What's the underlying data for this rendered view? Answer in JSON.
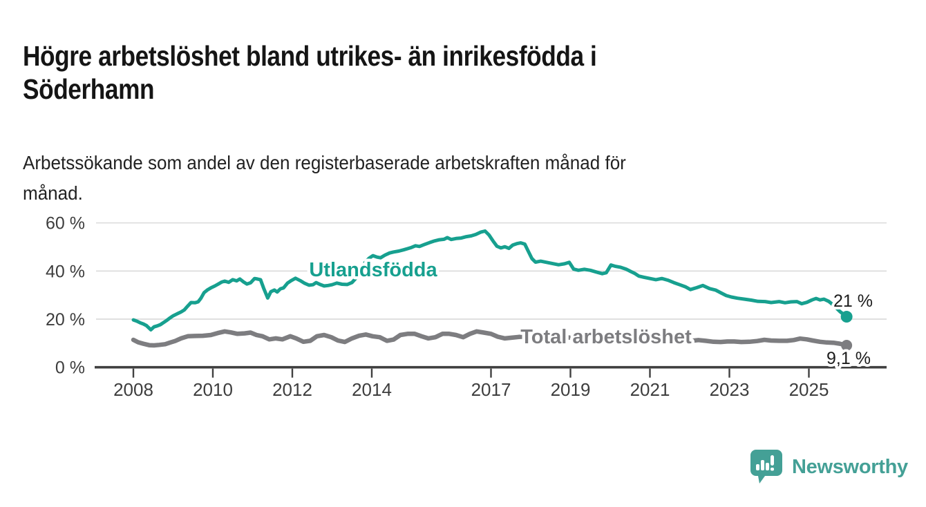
{
  "header": {
    "title": "Högre arbetslöshet bland utrikes- än inrikesfödda i Söderhamn",
    "title_lines": [
      "Högre arbetslöshet bland utrikes- än inrikesfödda i",
      "Söderhamn"
    ],
    "subtitle": "Arbetssökande som andel av den registerbaserade arbetskraften månad för månad.",
    "subtitle_lines": [
      "Arbetssökande som andel av den registerbaserade arbetskraften månad för",
      "månad."
    ]
  },
  "footer": {
    "brand": "Newsworthy",
    "brand_color": "#44a096",
    "logo_icon": "bar-chart-speech-bubble-icon"
  },
  "chart_data": {
    "type": "line",
    "title": "Högre arbetslöshet bland utrikes- än inrikesfödda i Söderhamn",
    "subtitle": "Arbetssökande som andel av den registerbaserade arbetskraften månad för månad.",
    "xlabel": "",
    "ylabel": "",
    "x_axis": {
      "min": 2008,
      "max": 2026.1,
      "ticks": [
        {
          "v": 2008,
          "label": "2008"
        },
        {
          "v": 2010,
          "label": "2010"
        },
        {
          "v": 2012,
          "label": "2012"
        },
        {
          "v": 2014,
          "label": "2014"
        },
        {
          "v": 2017,
          "label": "2017"
        },
        {
          "v": 2019,
          "label": "2019"
        },
        {
          "v": 2021,
          "label": "2021"
        },
        {
          "v": 2023,
          "label": "2023"
        },
        {
          "v": 2025,
          "label": "2025"
        }
      ]
    },
    "y_axis": {
      "min": 0,
      "max": 62,
      "unit": "%",
      "grid": true,
      "ticks": [
        {
          "v": 0,
          "label": "0 %"
        },
        {
          "v": 20,
          "label": "20 %"
        },
        {
          "v": 40,
          "label": "40 %"
        },
        {
          "v": 60,
          "label": "60 %"
        }
      ]
    },
    "colors": {
      "grid": "#dcdcdc",
      "axis": "#404040",
      "tick_text": "#3d3d3d",
      "annotation_text": "#1c1c1c"
    },
    "legend_position": "inline-labels",
    "series": [
      {
        "name": "Utlandsfödda",
        "color": "#17a08f",
        "end_label": "21 %",
        "end_value": 21,
        "points": [
          [
            2008.0,
            19.7
          ],
          [
            2008.08,
            19.2
          ],
          [
            2008.17,
            18.5
          ],
          [
            2008.25,
            18.0
          ],
          [
            2008.33,
            17.3
          ],
          [
            2008.44,
            15.6
          ],
          [
            2008.52,
            16.8
          ],
          [
            2008.6,
            17.2
          ],
          [
            2008.68,
            17.7
          ],
          [
            2008.76,
            18.6
          ],
          [
            2008.85,
            19.6
          ],
          [
            2008.93,
            20.6
          ],
          [
            2009.0,
            21.4
          ],
          [
            2009.1,
            22.2
          ],
          [
            2009.2,
            23.0
          ],
          [
            2009.28,
            23.8
          ],
          [
            2009.37,
            25.5
          ],
          [
            2009.45,
            26.9
          ],
          [
            2009.55,
            26.8
          ],
          [
            2009.63,
            27.2
          ],
          [
            2009.7,
            28.7
          ],
          [
            2009.78,
            31.0
          ],
          [
            2009.86,
            32.1
          ],
          [
            2009.95,
            33.0
          ],
          [
            2010.05,
            33.8
          ],
          [
            2010.15,
            34.7
          ],
          [
            2010.22,
            35.4
          ],
          [
            2010.3,
            35.8
          ],
          [
            2010.4,
            35.3
          ],
          [
            2010.5,
            36.4
          ],
          [
            2010.6,
            35.9
          ],
          [
            2010.68,
            36.7
          ],
          [
            2010.78,
            35.4
          ],
          [
            2010.86,
            34.6
          ],
          [
            2010.95,
            35.1
          ],
          [
            2011.05,
            36.9
          ],
          [
            2011.12,
            36.7
          ],
          [
            2011.2,
            36.4
          ],
          [
            2011.28,
            32.8
          ],
          [
            2011.38,
            28.8
          ],
          [
            2011.46,
            31.4
          ],
          [
            2011.55,
            32.1
          ],
          [
            2011.62,
            31.3
          ],
          [
            2011.7,
            32.6
          ],
          [
            2011.78,
            33.0
          ],
          [
            2011.88,
            35.0
          ],
          [
            2011.97,
            36.0
          ],
          [
            2012.08,
            37.0
          ],
          [
            2012.2,
            36.0
          ],
          [
            2012.3,
            35.0
          ],
          [
            2012.42,
            34.1
          ],
          [
            2012.52,
            34.3
          ],
          [
            2012.6,
            35.2
          ],
          [
            2012.7,
            34.4
          ],
          [
            2012.8,
            33.8
          ],
          [
            2012.9,
            34.0
          ],
          [
            2013.0,
            34.3
          ],
          [
            2013.12,
            35.0
          ],
          [
            2013.25,
            34.5
          ],
          [
            2013.38,
            34.4
          ],
          [
            2013.5,
            35.2
          ],
          [
            2013.6,
            37.0
          ],
          [
            2013.72,
            40.5
          ],
          [
            2013.83,
            43.5
          ],
          [
            2013.93,
            45.3
          ],
          [
            2014.03,
            46.4
          ],
          [
            2014.13,
            45.8
          ],
          [
            2014.22,
            45.5
          ],
          [
            2014.33,
            46.6
          ],
          [
            2014.45,
            47.5
          ],
          [
            2014.55,
            47.9
          ],
          [
            2014.68,
            48.3
          ],
          [
            2014.8,
            48.8
          ],
          [
            2014.9,
            49.3
          ],
          [
            2015.0,
            49.8
          ],
          [
            2015.1,
            50.5
          ],
          [
            2015.2,
            50.2
          ],
          [
            2015.32,
            51.0
          ],
          [
            2015.45,
            51.8
          ],
          [
            2015.58,
            52.5
          ],
          [
            2015.7,
            53.0
          ],
          [
            2015.82,
            53.2
          ],
          [
            2015.9,
            53.9
          ],
          [
            2016.0,
            53.1
          ],
          [
            2016.12,
            53.5
          ],
          [
            2016.25,
            53.7
          ],
          [
            2016.38,
            54.3
          ],
          [
            2016.5,
            54.6
          ],
          [
            2016.62,
            55.2
          ],
          [
            2016.75,
            56.2
          ],
          [
            2016.85,
            56.6
          ],
          [
            2016.95,
            55.0
          ],
          [
            2017.05,
            52.5
          ],
          [
            2017.15,
            50.3
          ],
          [
            2017.25,
            49.6
          ],
          [
            2017.35,
            50.1
          ],
          [
            2017.45,
            49.4
          ],
          [
            2017.55,
            50.8
          ],
          [
            2017.65,
            51.4
          ],
          [
            2017.75,
            51.7
          ],
          [
            2017.85,
            51.2
          ],
          [
            2017.93,
            48.5
          ],
          [
            2018.03,
            45.2
          ],
          [
            2018.12,
            43.7
          ],
          [
            2018.25,
            44.1
          ],
          [
            2018.4,
            43.6
          ],
          [
            2018.55,
            43.1
          ],
          [
            2018.7,
            42.6
          ],
          [
            2018.85,
            43.0
          ],
          [
            2018.97,
            43.6
          ],
          [
            2019.08,
            40.8
          ],
          [
            2019.2,
            40.3
          ],
          [
            2019.35,
            40.7
          ],
          [
            2019.5,
            40.3
          ],
          [
            2019.65,
            39.6
          ],
          [
            2019.8,
            38.9
          ],
          [
            2019.9,
            39.3
          ],
          [
            2020.02,
            42.5
          ],
          [
            2020.12,
            42.0
          ],
          [
            2020.25,
            41.6
          ],
          [
            2020.4,
            40.8
          ],
          [
            2020.52,
            39.8
          ],
          [
            2020.62,
            39.0
          ],
          [
            2020.72,
            37.9
          ],
          [
            2020.85,
            37.4
          ],
          [
            2021.0,
            36.9
          ],
          [
            2021.15,
            36.4
          ],
          [
            2021.3,
            36.9
          ],
          [
            2021.45,
            36.2
          ],
          [
            2021.6,
            35.2
          ],
          [
            2021.75,
            34.3
          ],
          [
            2021.9,
            33.4
          ],
          [
            2022.02,
            32.3
          ],
          [
            2022.18,
            33.1
          ],
          [
            2022.33,
            34.0
          ],
          [
            2022.5,
            32.7
          ],
          [
            2022.65,
            32.1
          ],
          [
            2022.8,
            30.8
          ],
          [
            2022.92,
            29.8
          ],
          [
            2023.05,
            29.2
          ],
          [
            2023.2,
            28.7
          ],
          [
            2023.38,
            28.3
          ],
          [
            2023.55,
            27.9
          ],
          [
            2023.72,
            27.4
          ],
          [
            2023.9,
            27.3
          ],
          [
            2024.05,
            26.9
          ],
          [
            2024.25,
            27.3
          ],
          [
            2024.4,
            26.8
          ],
          [
            2024.55,
            27.2
          ],
          [
            2024.7,
            27.3
          ],
          [
            2024.82,
            26.4
          ],
          [
            2024.95,
            27.0
          ],
          [
            2025.08,
            28.0
          ],
          [
            2025.18,
            28.6
          ],
          [
            2025.28,
            28.0
          ],
          [
            2025.38,
            28.3
          ],
          [
            2025.5,
            27.4
          ],
          [
            2025.62,
            25.8
          ],
          [
            2025.78,
            23.2
          ],
          [
            2025.95,
            21.0
          ]
        ]
      },
      {
        "name": "Total arbetslöshet",
        "color": "#7d7d80",
        "end_label": "9,1 %",
        "end_value": 9.1,
        "points": [
          [
            2008.0,
            11.4
          ],
          [
            2008.12,
            10.4
          ],
          [
            2008.25,
            9.8
          ],
          [
            2008.4,
            9.2
          ],
          [
            2008.52,
            9.1
          ],
          [
            2008.65,
            9.3
          ],
          [
            2008.8,
            9.6
          ],
          [
            2008.93,
            10.3
          ],
          [
            2009.05,
            10.9
          ],
          [
            2009.2,
            12.0
          ],
          [
            2009.37,
            12.9
          ],
          [
            2009.55,
            13.0
          ],
          [
            2009.75,
            13.1
          ],
          [
            2009.95,
            13.4
          ],
          [
            2010.12,
            14.2
          ],
          [
            2010.3,
            14.9
          ],
          [
            2010.45,
            14.5
          ],
          [
            2010.62,
            13.9
          ],
          [
            2010.8,
            14.1
          ],
          [
            2010.95,
            14.4
          ],
          [
            2011.1,
            13.4
          ],
          [
            2011.25,
            12.9
          ],
          [
            2011.42,
            11.6
          ],
          [
            2011.58,
            12.0
          ],
          [
            2011.75,
            11.6
          ],
          [
            2011.95,
            12.9
          ],
          [
            2012.1,
            12.0
          ],
          [
            2012.28,
            10.6
          ],
          [
            2012.45,
            11.0
          ],
          [
            2012.62,
            12.9
          ],
          [
            2012.8,
            13.4
          ],
          [
            2012.98,
            12.5
          ],
          [
            2013.15,
            11.1
          ],
          [
            2013.32,
            10.5
          ],
          [
            2013.5,
            12.0
          ],
          [
            2013.68,
            13.1
          ],
          [
            2013.85,
            13.6
          ],
          [
            2014.02,
            12.9
          ],
          [
            2014.2,
            12.5
          ],
          [
            2014.38,
            11.0
          ],
          [
            2014.55,
            11.5
          ],
          [
            2014.72,
            13.4
          ],
          [
            2014.9,
            13.9
          ],
          [
            2015.08,
            13.9
          ],
          [
            2015.25,
            12.9
          ],
          [
            2015.42,
            12.0
          ],
          [
            2015.6,
            12.5
          ],
          [
            2015.78,
            13.9
          ],
          [
            2015.95,
            13.9
          ],
          [
            2016.12,
            13.4
          ],
          [
            2016.3,
            12.5
          ],
          [
            2016.47,
            13.9
          ],
          [
            2016.64,
            14.9
          ],
          [
            2016.82,
            14.4
          ],
          [
            2017.0,
            13.9
          ],
          [
            2017.17,
            12.7
          ],
          [
            2017.35,
            12.0
          ],
          [
            2017.52,
            12.3
          ],
          [
            2017.7,
            12.6
          ],
          [
            2017.9,
            12.8
          ],
          [
            2018.1,
            12.5
          ],
          [
            2018.3,
            12.1
          ],
          [
            2018.5,
            12.2
          ],
          [
            2018.7,
            12.4
          ],
          [
            2018.9,
            12.5
          ],
          [
            2019.1,
            12.1
          ],
          [
            2019.3,
            11.8
          ],
          [
            2019.5,
            11.5
          ],
          [
            2019.7,
            11.8
          ],
          [
            2019.9,
            12.0
          ],
          [
            2020.1,
            12.6
          ],
          [
            2020.3,
            12.8
          ],
          [
            2020.5,
            12.5
          ],
          [
            2020.7,
            12.2
          ],
          [
            2020.9,
            12.0
          ],
          [
            2021.1,
            11.8
          ],
          [
            2021.28,
            11.6
          ],
          [
            2021.45,
            11.5
          ],
          [
            2021.65,
            11.1
          ],
          [
            2021.85,
            10.6
          ],
          [
            2022.05,
            11.0
          ],
          [
            2022.22,
            11.3
          ],
          [
            2022.4,
            11.0
          ],
          [
            2022.6,
            10.6
          ],
          [
            2022.78,
            10.5
          ],
          [
            2022.95,
            10.7
          ],
          [
            2023.12,
            10.7
          ],
          [
            2023.3,
            10.5
          ],
          [
            2023.5,
            10.6
          ],
          [
            2023.7,
            10.9
          ],
          [
            2023.88,
            11.4
          ],
          [
            2024.05,
            11.1
          ],
          [
            2024.25,
            11.0
          ],
          [
            2024.45,
            11.0
          ],
          [
            2024.62,
            11.3
          ],
          [
            2024.78,
            11.9
          ],
          [
            2024.95,
            11.6
          ],
          [
            2025.1,
            11.1
          ],
          [
            2025.28,
            10.6
          ],
          [
            2025.45,
            10.3
          ],
          [
            2025.62,
            10.2
          ],
          [
            2025.78,
            9.8
          ],
          [
            2025.95,
            9.1
          ]
        ]
      }
    ]
  }
}
